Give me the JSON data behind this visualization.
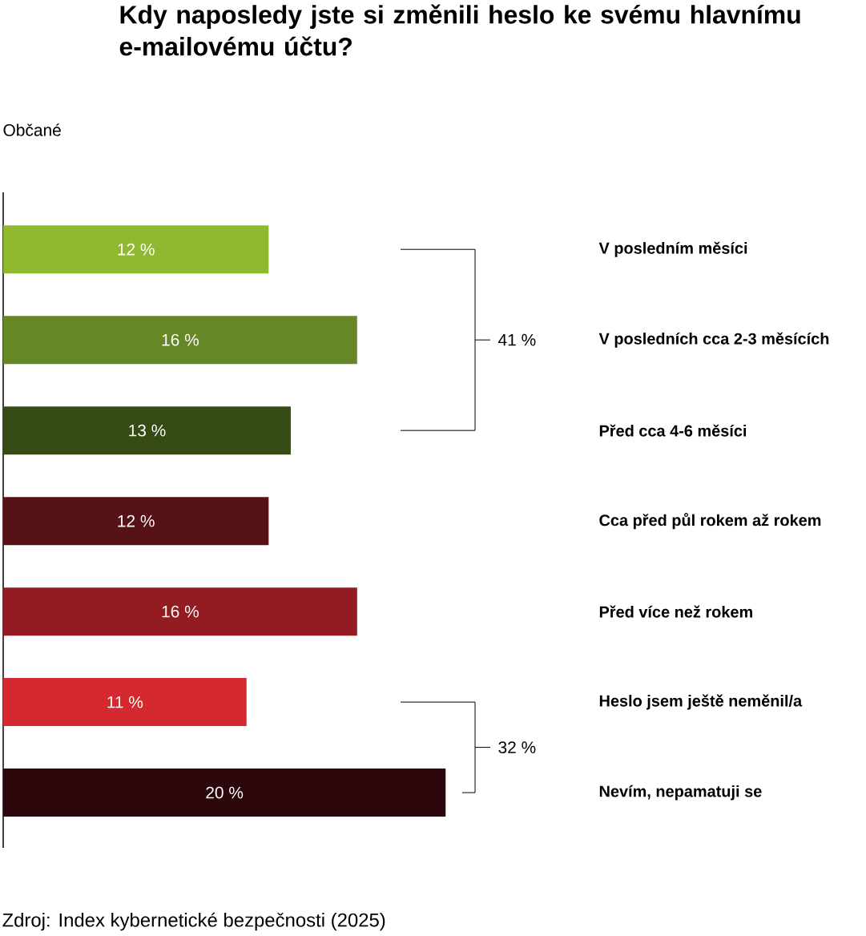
{
  "chart_data": {
    "type": "bar",
    "orientation": "horizontal",
    "title": "Kdy naposledy jste si změnili heslo ke svému hlavnímu e-mailovému účtu?",
    "subtitle": "Občané",
    "categories": [
      "V posledním měsíci",
      "V posledních cca 2-3 měsících",
      "Před cca 4-6 měsíci",
      "Cca před půl rokem až rokem",
      "Před více než rokem",
      "Heslo jsem ještě neměnil/a",
      "Nevím, nepamatuji se"
    ],
    "values": [
      12,
      16,
      13,
      12,
      16,
      11,
      20
    ],
    "value_labels": [
      "12 %",
      "16 %",
      "13 %",
      "12 %",
      "16 %",
      "11 %",
      "20 %"
    ],
    "colors": [
      "#8fba2f",
      "#668726",
      "#354a14",
      "#561216",
      "#921c21",
      "#d4292f",
      "#2b070b"
    ],
    "annotations": [
      "41 %",
      "32 %",
      "Zdroj: Index kybernetické bezpečnosti (2025)"
    ]
  }
}
